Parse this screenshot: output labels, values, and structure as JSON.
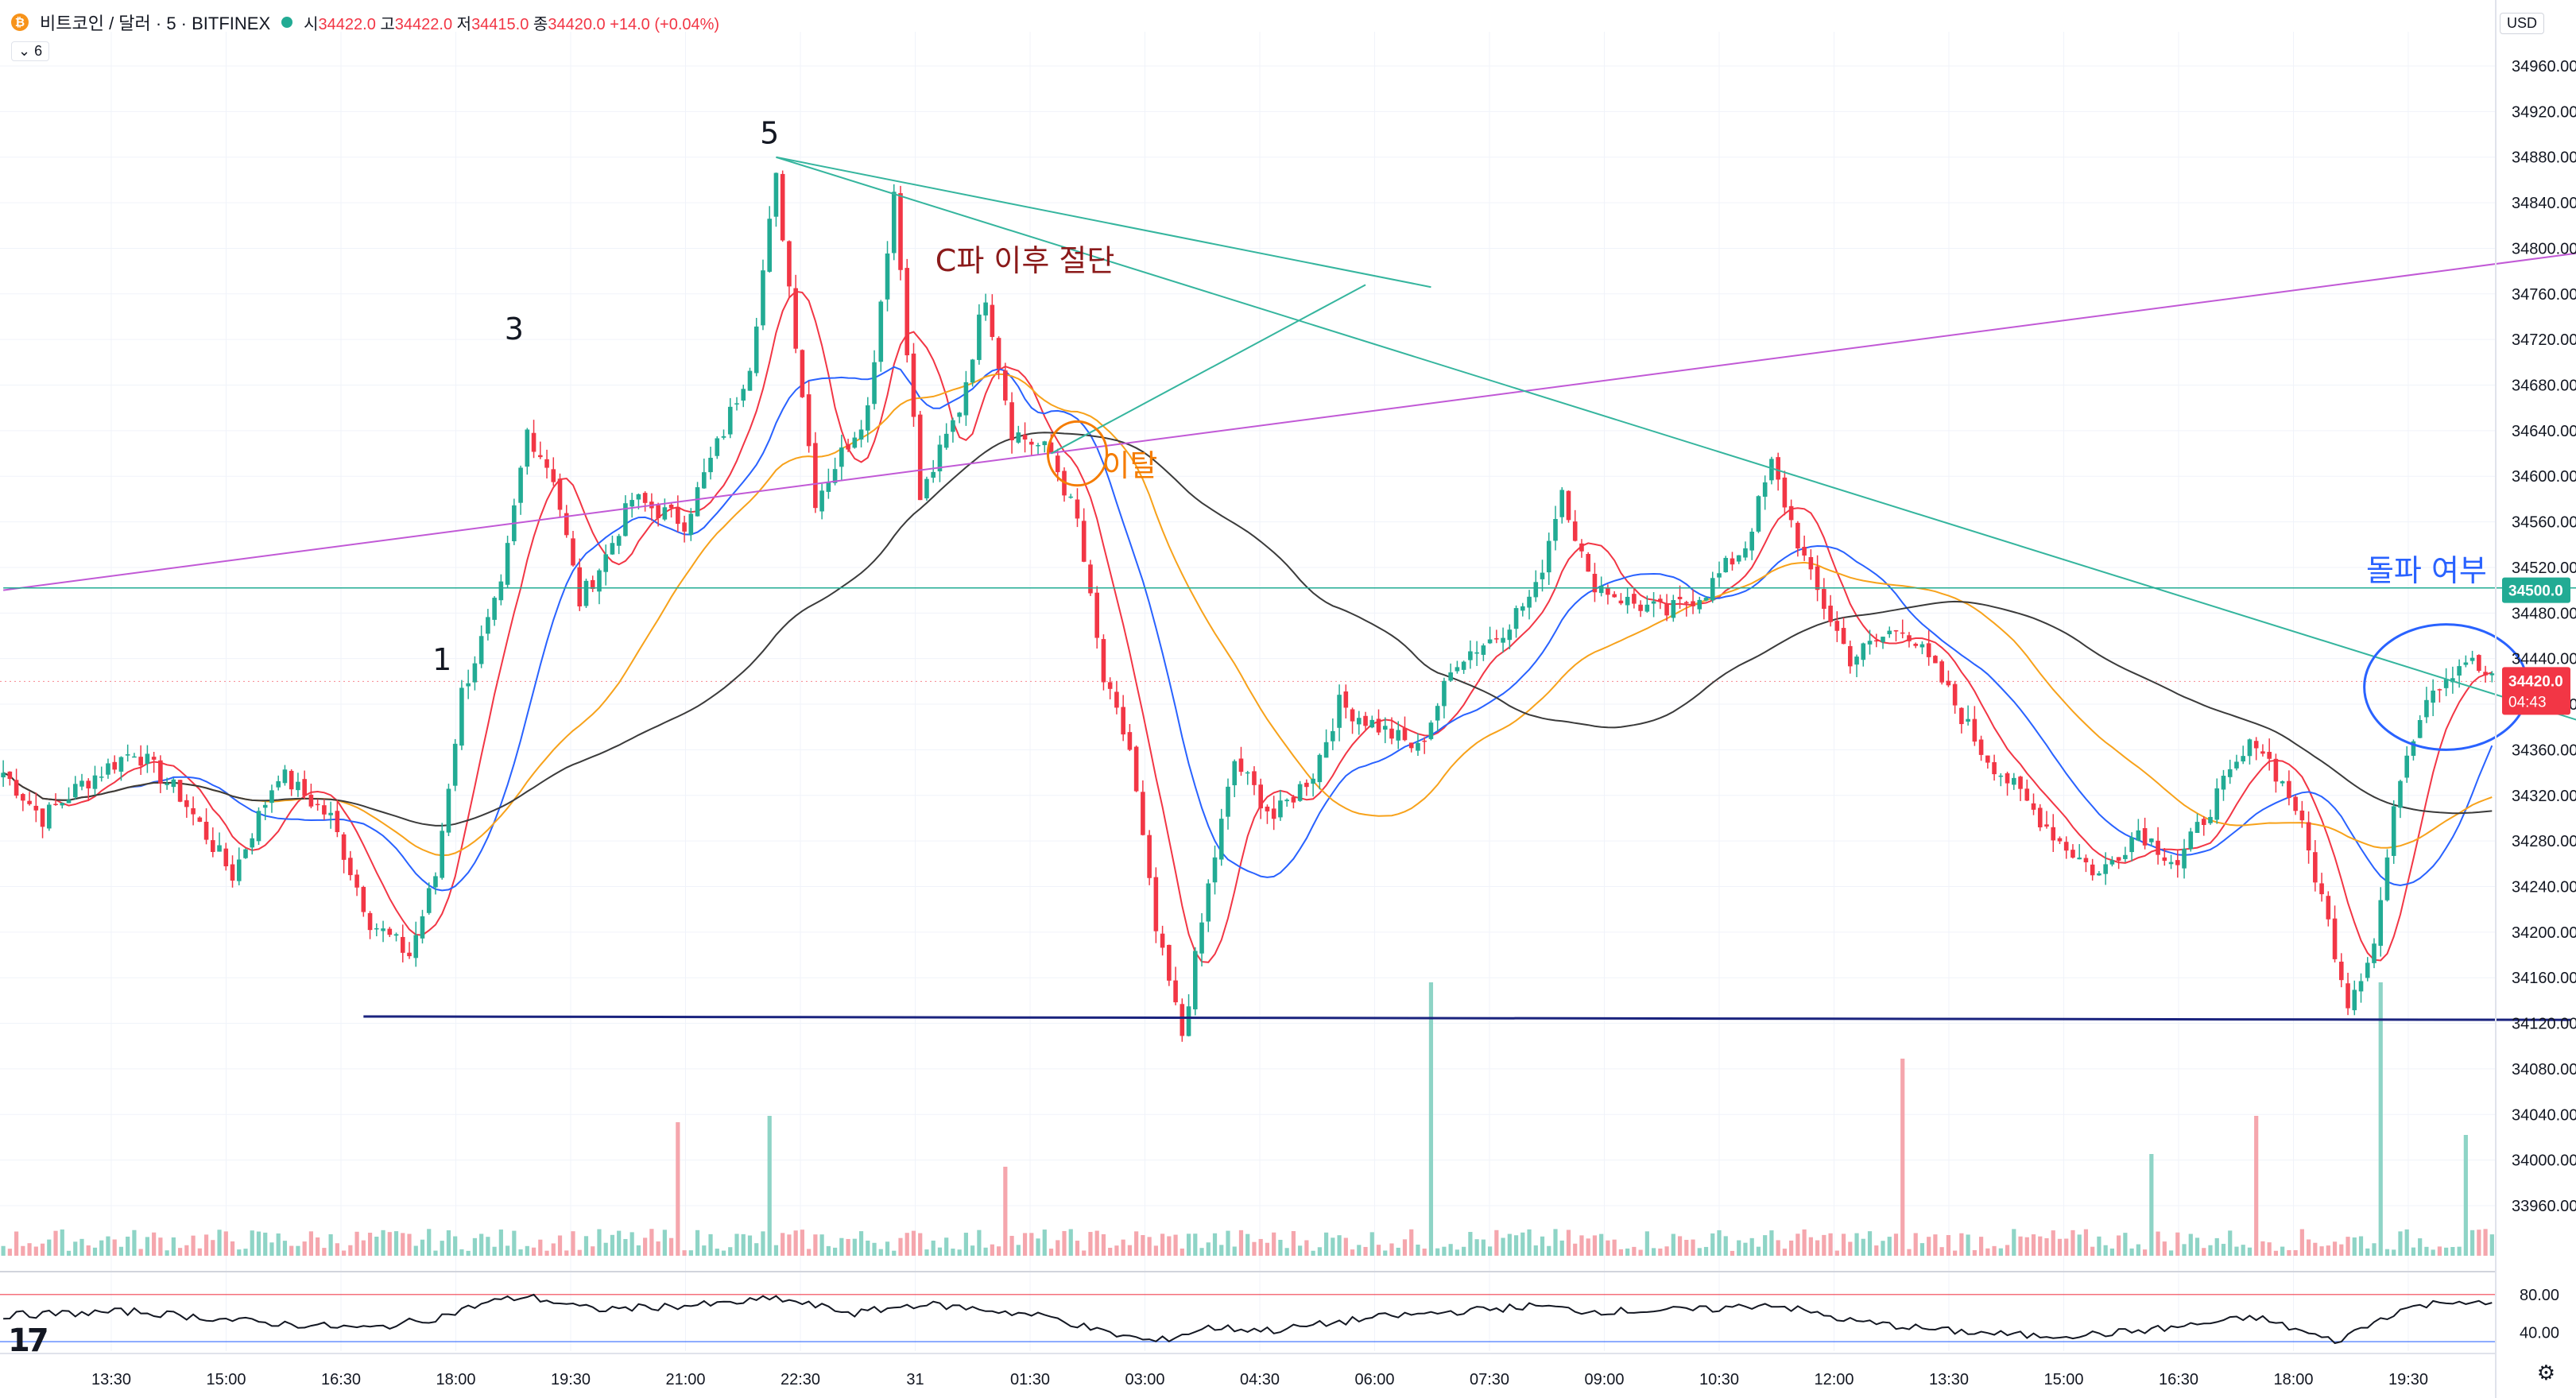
{
  "header": {
    "symbol": "비트코인 / 달러 · 5 · BITFINEX",
    "coin_glyph": "₿",
    "o_label": "시",
    "o": "34422.0",
    "h_label": "고",
    "h": "34422.0",
    "l_label": "저",
    "l": "34415.0",
    "c_label": "종",
    "c": "34420.0",
    "change": "+14.0 (+0.04%)",
    "indicator_count": "6",
    "currency": "USD"
  },
  "colors": {
    "up": "#22ab94",
    "down": "#f23645",
    "ma_fast": "#f23645",
    "ma_mid": "#2962ff",
    "ma_slow": "#f7a21b",
    "ma_long": "#3b3b3b",
    "trend_green": "#35b59e",
    "trend_purple": "#c159d6",
    "support": "#1a237e",
    "resistance": "#22ab94"
  },
  "chart_data": {
    "type": "candlestick",
    "currency": "USD",
    "y_ticks": [
      34960,
      34920,
      34880,
      34840,
      34800,
      34760,
      34720,
      34680,
      34640,
      34600,
      34560,
      34520,
      34480,
      34440,
      34400,
      34360,
      34320,
      34280,
      34240,
      34200,
      34160,
      34120,
      34080,
      34040,
      34000,
      33960
    ],
    "ylim": [
      33930,
      34990
    ],
    "x_ticks": [
      "13:30",
      "15:00",
      "16:30",
      "18:00",
      "19:30",
      "21:00",
      "22:30",
      "31",
      "01:30",
      "03:00",
      "04:30",
      "06:00",
      "07:30",
      "09:00",
      "10:30",
      "12:00",
      "13:30",
      "15:00",
      "16:30",
      "18:00",
      "19:30"
    ],
    "price_tag": {
      "value": "34420.0",
      "countdown": "04:43",
      "price": 34420
    },
    "level_tag": {
      "value": "34500.0",
      "price": 34500
    },
    "rsi_ticks": [
      "80.00",
      "40.00"
    ],
    "rsi_ylim": [
      20,
      100
    ],
    "keypoints": [
      [
        0,
        34340
      ],
      [
        6,
        34300
      ],
      [
        12,
        34330
      ],
      [
        20,
        34360
      ],
      [
        27,
        34320
      ],
      [
        35,
        34250
      ],
      [
        42,
        34340
      ],
      [
        50,
        34300
      ],
      [
        56,
        34210
      ],
      [
        62,
        34180
      ],
      [
        66,
        34250
      ],
      [
        70,
        34410
      ],
      [
        76,
        34500
      ],
      [
        80,
        34640
      ],
      [
        84,
        34600
      ],
      [
        88,
        34490
      ],
      [
        92,
        34530
      ],
      [
        96,
        34580
      ],
      [
        104,
        34560
      ],
      [
        110,
        34640
      ],
      [
        114,
        34700
      ],
      [
        118,
        34860
      ],
      [
        124,
        34580
      ],
      [
        128,
        34620
      ],
      [
        132,
        34660
      ],
      [
        136,
        34850
      ],
      [
        140,
        34580
      ],
      [
        146,
        34660
      ],
      [
        150,
        34760
      ],
      [
        154,
        34640
      ],
      [
        160,
        34620
      ],
      [
        164,
        34560
      ],
      [
        168,
        34420
      ],
      [
        172,
        34360
      ],
      [
        176,
        34200
      ],
      [
        180,
        34110
      ],
      [
        184,
        34240
      ],
      [
        188,
        34350
      ],
      [
        194,
        34300
      ],
      [
        200,
        34340
      ],
      [
        204,
        34400
      ],
      [
        210,
        34380
      ],
      [
        216,
        34360
      ],
      [
        222,
        34440
      ],
      [
        228,
        34460
      ],
      [
        234,
        34500
      ],
      [
        238,
        34590
      ],
      [
        242,
        34510
      ],
      [
        248,
        34490
      ],
      [
        254,
        34480
      ],
      [
        260,
        34500
      ],
      [
        266,
        34540
      ],
      [
        270,
        34610
      ],
      [
        276,
        34510
      ],
      [
        282,
        34440
      ],
      [
        290,
        34470
      ],
      [
        296,
        34420
      ],
      [
        302,
        34360
      ],
      [
        308,
        34320
      ],
      [
        314,
        34280
      ],
      [
        320,
        34250
      ],
      [
        326,
        34290
      ],
      [
        332,
        34260
      ],
      [
        338,
        34320
      ],
      [
        344,
        34370
      ],
      [
        350,
        34310
      ],
      [
        354,
        34230
      ],
      [
        358,
        34140
      ],
      [
        362,
        34190
      ],
      [
        366,
        34340
      ],
      [
        370,
        34410
      ],
      [
        376,
        34440
      ],
      [
        380,
        34420
      ]
    ],
    "rsi_points": [
      [
        0,
        58
      ],
      [
        20,
        62
      ],
      [
        40,
        50
      ],
      [
        56,
        44
      ],
      [
        66,
        55
      ],
      [
        74,
        72
      ],
      [
        80,
        78
      ],
      [
        90,
        64
      ],
      [
        110,
        70
      ],
      [
        118,
        76
      ],
      [
        130,
        60
      ],
      [
        140,
        70
      ],
      [
        150,
        64
      ],
      [
        160,
        56
      ],
      [
        168,
        40
      ],
      [
        176,
        30
      ],
      [
        184,
        45
      ],
      [
        194,
        42
      ],
      [
        210,
        56
      ],
      [
        222,
        62
      ],
      [
        234,
        68
      ],
      [
        242,
        62
      ],
      [
        260,
        64
      ],
      [
        270,
        70
      ],
      [
        282,
        52
      ],
      [
        296,
        42
      ],
      [
        310,
        36
      ],
      [
        320,
        38
      ],
      [
        330,
        44
      ],
      [
        344,
        56
      ],
      [
        356,
        30
      ],
      [
        366,
        64
      ],
      [
        374,
        74
      ],
      [
        380,
        68
      ]
    ],
    "annotations": [
      {
        "text": "5",
        "x": 117,
        "y": 34892,
        "color": "#131722"
      },
      {
        "text": "3",
        "x": 78,
        "y": 34720,
        "color": "#131722"
      },
      {
        "text": "1",
        "x": 67,
        "y": 34430,
        "color": "#131722"
      },
      {
        "text": "C파 이후 절단",
        "x": 156,
        "y": 34780,
        "color": "#8b1a1a"
      },
      {
        "text": "이탈",
        "x": 172,
        "y": 34600,
        "color": "#f57c00"
      },
      {
        "text": "돌파 여부",
        "x": 370,
        "y": 34508,
        "color": "#2962ff"
      }
    ],
    "circles": [
      {
        "cx": 164,
        "cy": 34620,
        "r_bars": 4.5,
        "r_price": 28,
        "color": "#f57c00"
      },
      {
        "cx": 373,
        "cy": 34415,
        "r_bars": 12.5,
        "r_price": 55,
        "color": "#2962ff"
      }
    ],
    "lines": [
      {
        "x1": 0,
        "y1": 34500,
        "x2": 412,
        "y2": 34810,
        "color": "#c159d6",
        "width": 2
      },
      {
        "x1": 118,
        "y1": 34880,
        "x2": 412,
        "y2": 34352,
        "color": "#35b59e",
        "width": 2
      },
      {
        "x1": 118,
        "y1": 34880,
        "x2": 218,
        "y2": 34766,
        "color": "#35b59e",
        "width": 2
      },
      {
        "x1": 160,
        "y1": 34620,
        "x2": 208,
        "y2": 34768,
        "color": "#35b59e",
        "width": 2
      },
      {
        "x1": 55,
        "y1": 34126,
        "x2": 392,
        "y2": 34123,
        "color": "#1a237e",
        "width": 3
      },
      {
        "x1": 0,
        "y1": 34502,
        "x2": 412,
        "y2": 34502,
        "color": "#22ab94",
        "width": 1.5
      }
    ],
    "volume_spikes": [
      [
        57,
        0.06
      ],
      [
        103,
        0.42
      ],
      [
        117,
        0.44
      ],
      [
        153,
        0.28
      ],
      [
        218,
        0.86
      ],
      [
        290,
        0.62
      ],
      [
        328,
        0.32
      ],
      [
        344,
        0.44
      ],
      [
        363,
        0.86
      ],
      [
        376,
        0.38
      ]
    ],
    "bar_count": 381
  }
}
